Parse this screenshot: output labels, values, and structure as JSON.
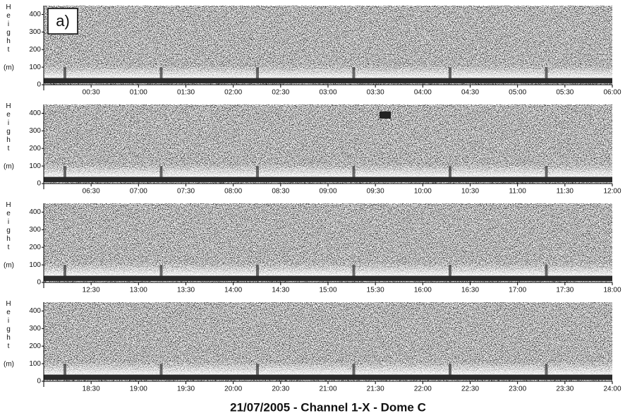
{
  "chart_data": [
    {
      "type": "echogram",
      "panel_label": "a)",
      "y_label": "Height",
      "y_unit": "(m)",
      "ylim": [
        0,
        450
      ],
      "yticks": [
        0,
        100,
        200,
        300,
        400
      ],
      "xlim": [
        0,
        6
      ],
      "xticks": [
        {
          "value": 0.5,
          "label": "00:30"
        },
        {
          "value": 1,
          "label": "01:00"
        },
        {
          "value": 1.5,
          "label": "01:30"
        },
        {
          "value": 2,
          "label": "02:00"
        },
        {
          "value": 2.5,
          "label": "02:30"
        },
        {
          "value": 3,
          "label": "03:00"
        },
        {
          "value": 3.5,
          "label": "03:30"
        },
        {
          "value": 4,
          "label": "04:00"
        },
        {
          "value": 4.5,
          "label": "04:30"
        },
        {
          "value": 5,
          "label": "05:00"
        },
        {
          "value": 5.5,
          "label": "05:30"
        },
        {
          "value": 6,
          "label": "06:00"
        }
      ]
    },
    {
      "type": "echogram",
      "y_label": "Height",
      "y_unit": "(m)",
      "ylim": [
        0,
        450
      ],
      "yticks": [
        0,
        100,
        200,
        300,
        400
      ],
      "xlim": [
        6,
        12
      ],
      "xticks": [
        {
          "value": 6.5,
          "label": "06:30"
        },
        {
          "value": 7,
          "label": "07:00"
        },
        {
          "value": 7.5,
          "label": "07:30"
        },
        {
          "value": 8,
          "label": "08:00"
        },
        {
          "value": 8.5,
          "label": "08:30"
        },
        {
          "value": 9,
          "label": "09:00"
        },
        {
          "value": 9.5,
          "label": "09:30"
        },
        {
          "value": 10,
          "label": "10:00"
        },
        {
          "value": 10.5,
          "label": "10:30"
        },
        {
          "value": 11,
          "label": "11:00"
        },
        {
          "value": 11.5,
          "label": "11:30"
        },
        {
          "value": 12,
          "label": "12:00"
        }
      ]
    },
    {
      "type": "echogram",
      "y_label": "Height",
      "y_unit": "(m)",
      "ylim": [
        0,
        450
      ],
      "yticks": [
        0,
        100,
        200,
        300,
        400
      ],
      "xlim": [
        12,
        18
      ],
      "xticks": [
        {
          "value": 12.5,
          "label": "12:30"
        },
        {
          "value": 13,
          "label": "13:00"
        },
        {
          "value": 13.5,
          "label": "13:30"
        },
        {
          "value": 14,
          "label": "14:00"
        },
        {
          "value": 14.5,
          "label": "14:30"
        },
        {
          "value": 15,
          "label": "15:00"
        },
        {
          "value": 15.5,
          "label": "15:30"
        },
        {
          "value": 16,
          "label": "16:00"
        },
        {
          "value": 16.5,
          "label": "16:30"
        },
        {
          "value": 17,
          "label": "17:00"
        },
        {
          "value": 17.5,
          "label": "17:30"
        },
        {
          "value": 18,
          "label": "18:00"
        }
      ]
    },
    {
      "type": "echogram",
      "y_label": "Height",
      "y_unit": "(m)",
      "ylim": [
        0,
        450
      ],
      "yticks": [
        0,
        100,
        200,
        300,
        400
      ],
      "xlim": [
        18,
        24
      ],
      "xticks": [
        {
          "value": 18.5,
          "label": "18:30"
        },
        {
          "value": 19,
          "label": "19:00"
        },
        {
          "value": 19.5,
          "label": "19:30"
        },
        {
          "value": 20,
          "label": "20:00"
        },
        {
          "value": 20.5,
          "label": "20:30"
        },
        {
          "value": 21,
          "label": "21:00"
        },
        {
          "value": 21.5,
          "label": "21:30"
        },
        {
          "value": 22,
          "label": "22:00"
        },
        {
          "value": 22.5,
          "label": "22:30"
        },
        {
          "value": 23,
          "label": "23:00"
        },
        {
          "value": 23.5,
          "label": "23:30"
        },
        {
          "value": 24,
          "label": "24:00"
        }
      ]
    }
  ],
  "caption": "21/07/2005 - Channel 1-X - Dome C"
}
